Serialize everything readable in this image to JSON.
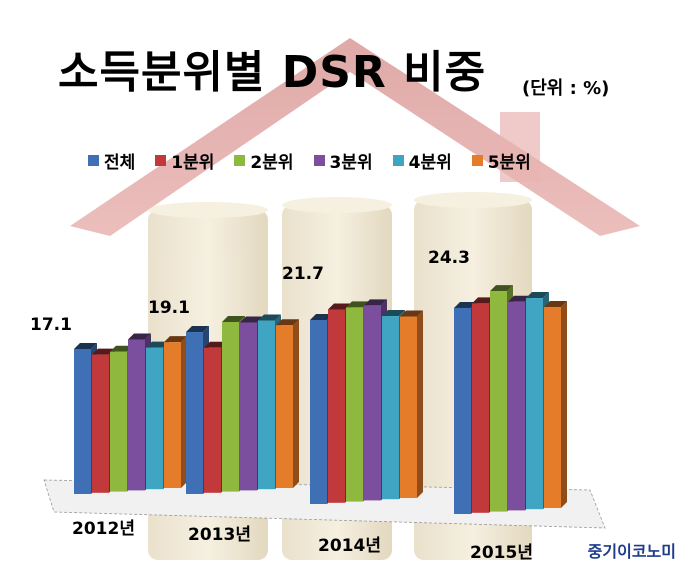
{
  "title": "소득분위별 DSR 비중",
  "unit": "(단위 : %)",
  "watermark": "중기이코노미",
  "chart_data": {
    "type": "bar",
    "title": "소득분위별 DSR 비중",
    "unit": "(단위 : %)",
    "categories": [
      "2012년",
      "2013년",
      "2014년",
      "2015년"
    ],
    "series": [
      {
        "name": "전체",
        "color": "#3f6fb5",
        "values": [
          17.1,
          19.1,
          21.7,
          24.3
        ]
      },
      {
        "name": "1분위",
        "color": "#c1393a",
        "values": [
          16.3,
          17.1,
          22.8,
          24.7
        ]
      },
      {
        "name": "2분위",
        "color": "#8fb83f",
        "values": [
          16.5,
          20.0,
          22.9,
          26.0
        ]
      },
      {
        "name": "3분위",
        "color": "#7c4f9e",
        "values": [
          17.8,
          19.8,
          23.0,
          24.6
        ]
      },
      {
        "name": "4분위",
        "color": "#3fa5c3",
        "values": [
          16.7,
          19.9,
          21.6,
          24.9
        ]
      },
      {
        "name": "5분위",
        "color": "#e57c2a",
        "values": [
          17.2,
          19.2,
          21.4,
          23.7
        ]
      }
    ],
    "data_labels": [
      "17.1",
      "19.1",
      "21.7",
      "24.3"
    ],
    "legend_position": "top",
    "grid": false
  }
}
